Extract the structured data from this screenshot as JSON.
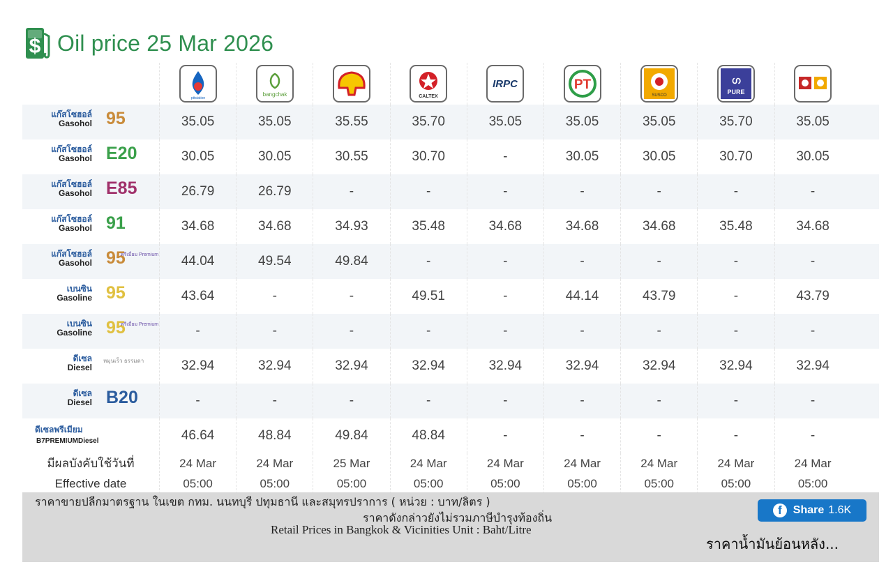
{
  "title": "Oil price 25 Mar 2026",
  "brands": [
    {
      "name": "PTT",
      "logo_text": "pttstation",
      "icon": "ptt-logo-icon",
      "color": "#1565c0"
    },
    {
      "name": "Bangchak",
      "logo_text": "bangchak",
      "icon": "bangchak-logo-icon",
      "color": "#5a9e3a"
    },
    {
      "name": "Shell",
      "logo_text": "",
      "icon": "shell-logo-icon",
      "color": "#f7c600"
    },
    {
      "name": "Caltex",
      "logo_text": "CALTEX",
      "icon": "caltex-logo-icon",
      "color": "#d32027"
    },
    {
      "name": "IRPC",
      "logo_text": "IRPC",
      "icon": "irpc-logo-icon",
      "color": "#1a3a6b"
    },
    {
      "name": "PT",
      "logo_text": "PT",
      "icon": "pt-logo-icon",
      "color": "#e03a2f"
    },
    {
      "name": "Susco",
      "logo_text": "SUSCO",
      "icon": "susco-logo-icon",
      "color": "#f2a900"
    },
    {
      "name": "Pure",
      "logo_text": "PURE",
      "icon": "pure-logo-icon",
      "color": "#3b3f9a"
    },
    {
      "name": "Esso/Other",
      "logo_text": "",
      "icon": "combo-logo-icon",
      "color": "#c62828"
    }
  ],
  "fuels": [
    {
      "th": "แก๊สโซฮอล์",
      "en": "Gasohol",
      "grade": "95",
      "grade_color": "#c98b3a",
      "sub": "",
      "values": [
        "35.05",
        "35.05",
        "35.55",
        "35.70",
        "35.05",
        "35.05",
        "35.05",
        "35.70",
        "35.05"
      ]
    },
    {
      "th": "แก๊สโซฮอล์",
      "en": "Gasohol",
      "grade": "E20",
      "grade_color": "#3aa04a",
      "sub": "",
      "values": [
        "30.05",
        "30.05",
        "30.55",
        "30.70",
        "-",
        "30.05",
        "30.05",
        "30.70",
        "30.05"
      ]
    },
    {
      "th": "แก๊สโซฮอล์",
      "en": "Gasohol",
      "grade": "E85",
      "grade_color": "#a0306a",
      "sub": "",
      "values": [
        "26.79",
        "26.79",
        "-",
        "-",
        "-",
        "-",
        "-",
        "-",
        "-"
      ]
    },
    {
      "th": "แก๊สโซฮอล์",
      "en": "Gasohol",
      "grade": "91",
      "grade_color": "#3aa04a",
      "sub": "",
      "values": [
        "34.68",
        "34.68",
        "34.93",
        "35.48",
        "34.68",
        "34.68",
        "34.68",
        "35.48",
        "34.68"
      ]
    },
    {
      "th": "แก๊สโซฮอล์",
      "en": "Gasohol",
      "grade": "95",
      "grade_color": "#c98b3a",
      "sub": "พรีเมี่ยม Premium",
      "values": [
        "44.04",
        "49.54",
        "49.84",
        "-",
        "-",
        "-",
        "-",
        "-",
        "-"
      ]
    },
    {
      "th": "เบนซิน",
      "en": "Gasoline",
      "grade": "95",
      "grade_color": "#e0c040",
      "sub": "",
      "values": [
        "43.64",
        "-",
        "-",
        "49.51",
        "-",
        "44.14",
        "43.79",
        "-",
        "43.79"
      ]
    },
    {
      "th": "เบนซิน",
      "en": "Gasoline",
      "grade": "95",
      "grade_color": "#e0c040",
      "sub": "พรีเมี่ยม Premium",
      "values": [
        "-",
        "-",
        "-",
        "-",
        "-",
        "-",
        "-",
        "-",
        "-"
      ]
    },
    {
      "th": "ดีเซล",
      "en": "Diesel",
      "grade": "",
      "grade_color": "#888888",
      "sub": "หมุนเร็ว ธรรมดา",
      "values": [
        "32.94",
        "32.94",
        "32.94",
        "32.94",
        "32.94",
        "32.94",
        "32.94",
        "32.94",
        "32.94"
      ]
    },
    {
      "th": "ดีเซล",
      "en": "Diesel",
      "grade": "B20",
      "grade_color": "#2b5c9e",
      "sub": "",
      "values": [
        "-",
        "-",
        "-",
        "-",
        "-",
        "-",
        "-",
        "-",
        "-"
      ]
    },
    {
      "th": "ดีเซลพรีเมียม",
      "en": "B7PREMIUMDiesel",
      "grade": "",
      "grade_color": "#2b5c9e",
      "sub": "",
      "values": [
        "46.64",
        "48.84",
        "49.84",
        "48.84",
        "-",
        "-",
        "-",
        "-",
        "-"
      ]
    }
  ],
  "effective": {
    "label_th": "มีผลบังคับใช้วันที่",
    "label_en": "Effective date",
    "dates": [
      "24 Mar",
      "24 Mar",
      "25 Mar",
      "24 Mar",
      "24 Mar",
      "24 Mar",
      "24 Mar",
      "24 Mar",
      "24 Mar"
    ],
    "times": [
      "05:00",
      "05:00",
      "05:00",
      "05:00",
      "05:00",
      "05:00",
      "05:00",
      "05:00",
      "05:00"
    ]
  },
  "footer": {
    "note_th_1": "ราคาขายปลีกมาตรฐาน ในเขต กทม. นนทบุรี ปทุมธานี และสมุทรปราการ ( หน่วย : บาท/ลิตร )",
    "note_th_2": "ราคาดังกล่าวยังไม่รวมภาษีบำรุงท้องถิ่น",
    "note_en": "Retail Prices in Bangkok & Vicinities Unit : Baht/Litre",
    "share_label": "Share",
    "share_count": "1.6K",
    "history_link": "ราคาน้ำมันย้อนหลัง..."
  }
}
